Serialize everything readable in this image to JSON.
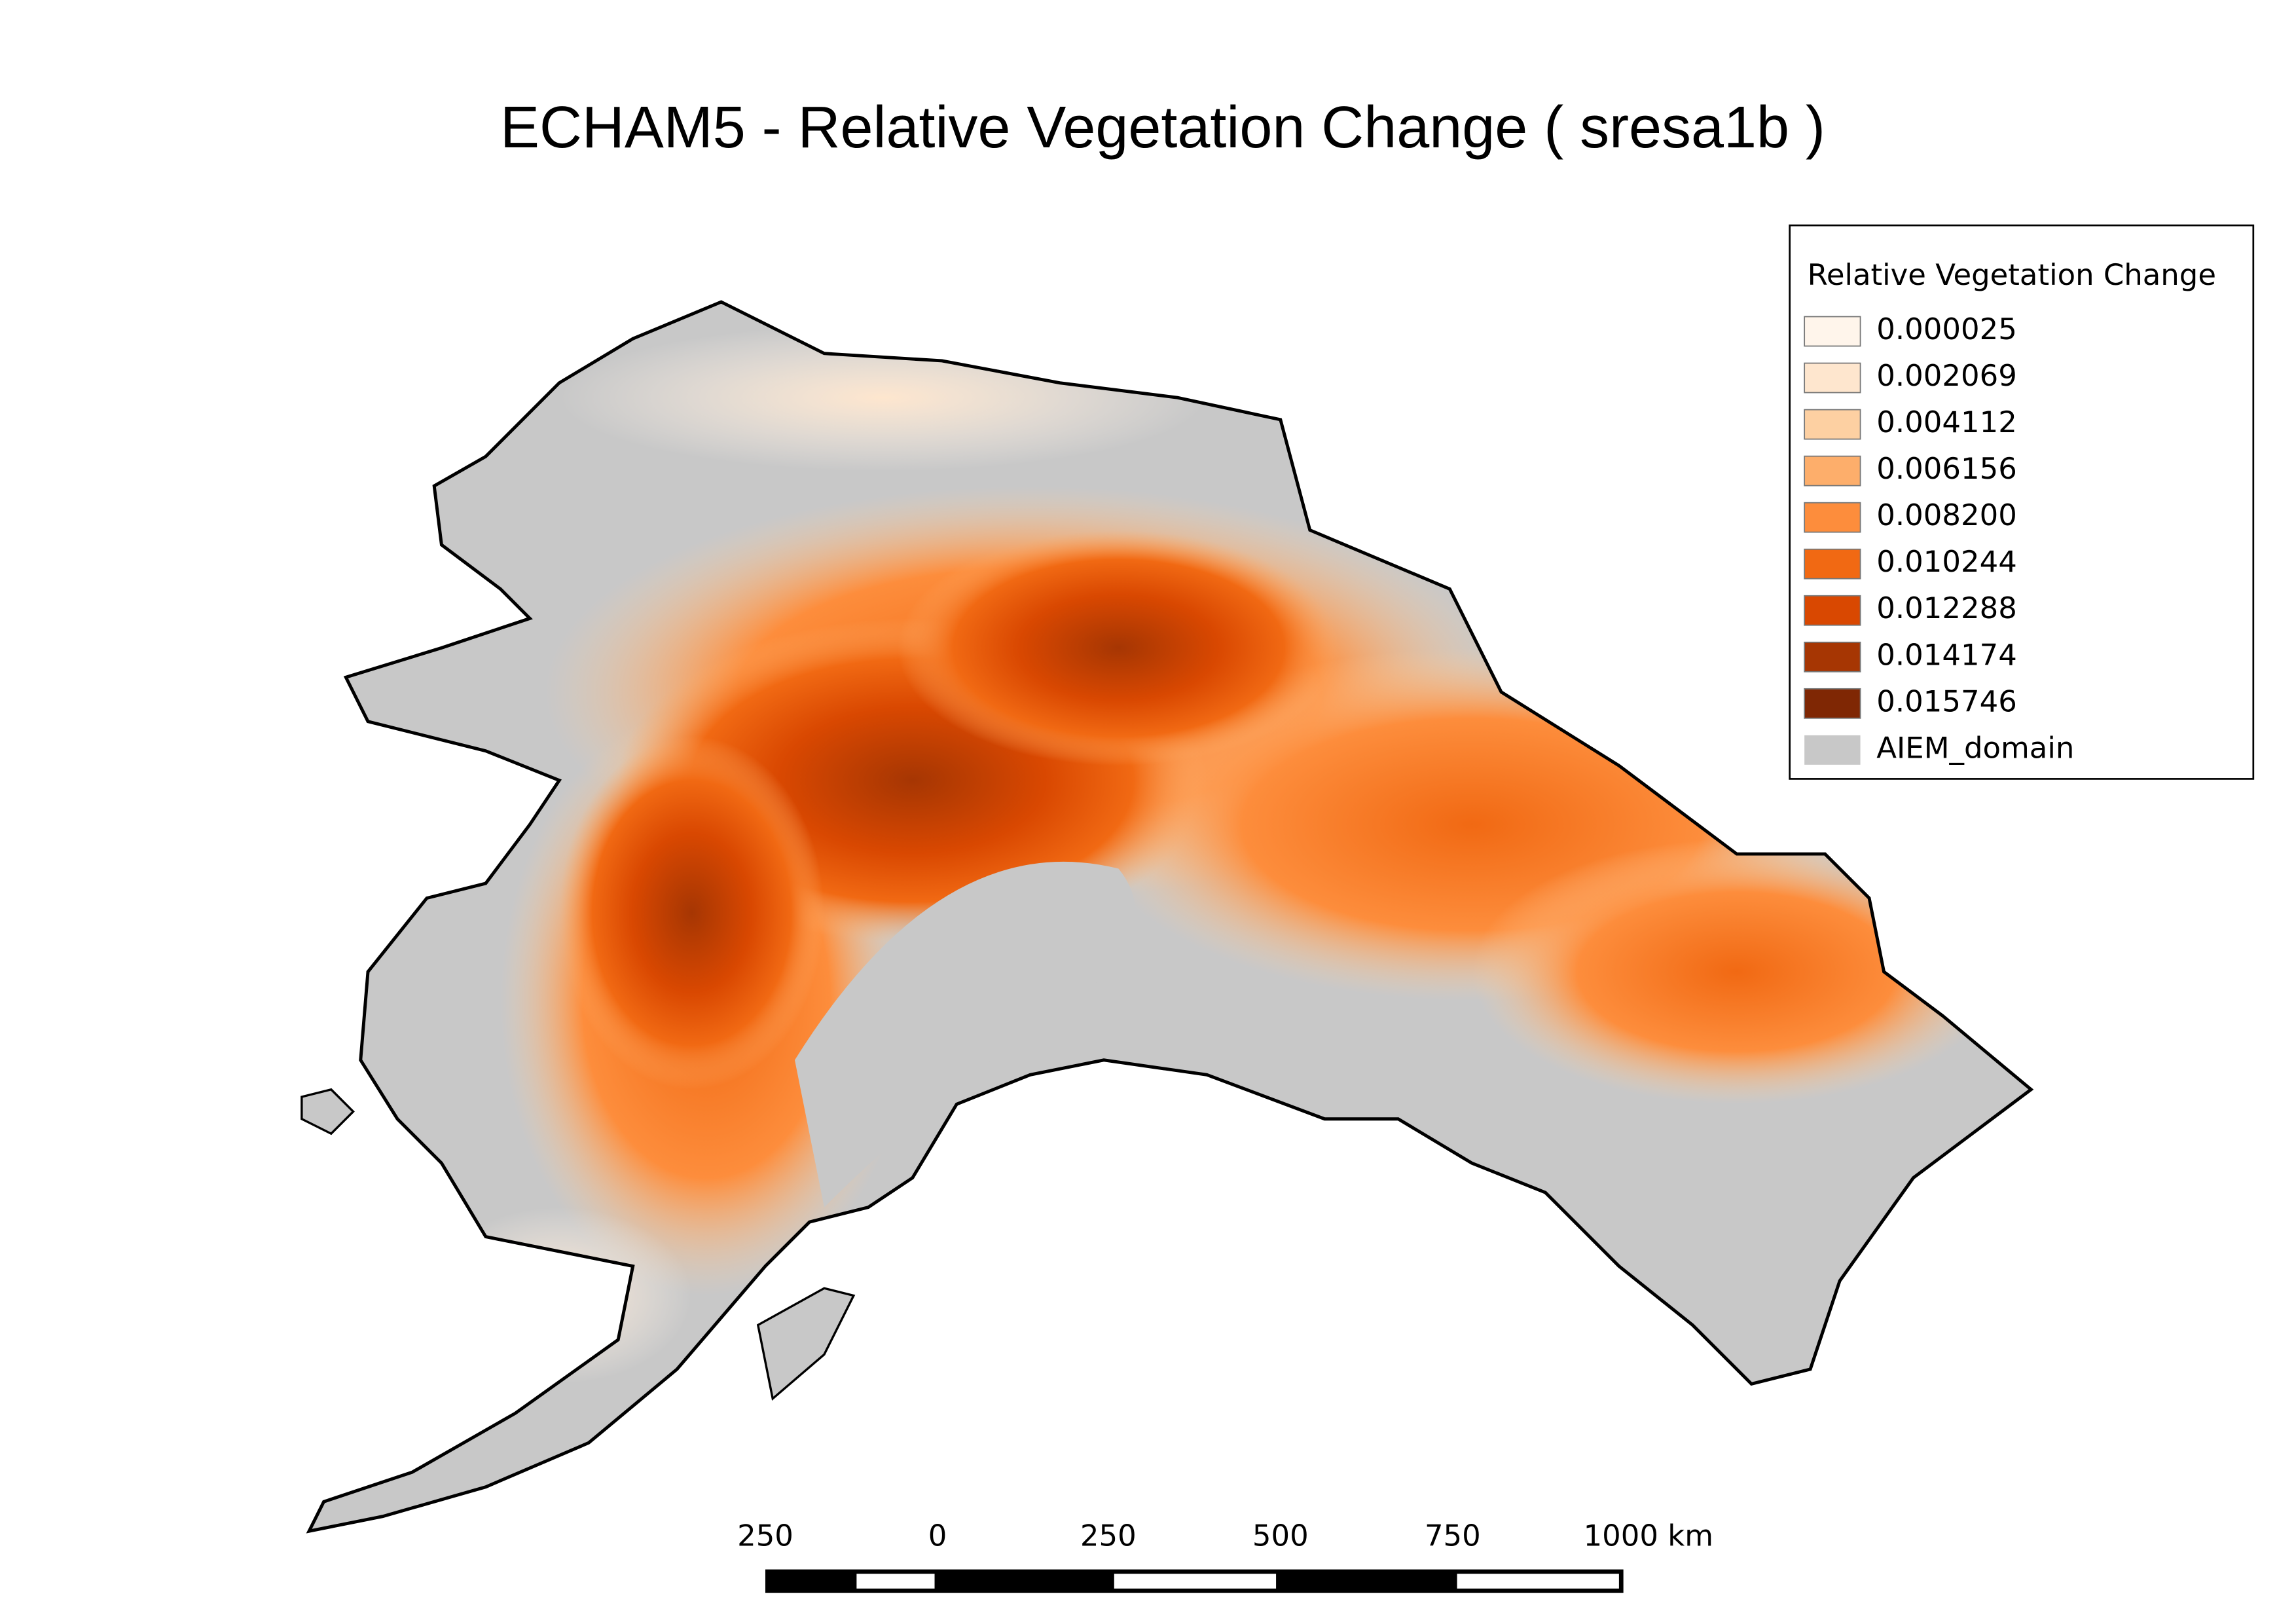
{
  "title": "ECHAM5 - Relative Vegetation Change ( sresa1b )",
  "legend": {
    "title": "Relative Vegetation Change",
    "items": [
      {
        "label": "0.000025",
        "color": "#fff5eb"
      },
      {
        "label": "0.002069",
        "color": "#fee6ce"
      },
      {
        "label": "0.004112",
        "color": "#fdd0a2"
      },
      {
        "label": "0.006156",
        "color": "#fdae6b"
      },
      {
        "label": "0.008200",
        "color": "#fd8d3c"
      },
      {
        "label": "0.010244",
        "color": "#f16913"
      },
      {
        "label": "0.012288",
        "color": "#d94801"
      },
      {
        "label": "0.014174",
        "color": "#a63603"
      },
      {
        "label": "0.015746",
        "color": "#7f2704"
      },
      {
        "label": "AIEM_domain",
        "color": "#c8c8c8"
      }
    ]
  },
  "scale_bar": {
    "labels": [
      "250",
      "0",
      "250",
      "500",
      "750",
      "1000 km"
    ]
  }
}
